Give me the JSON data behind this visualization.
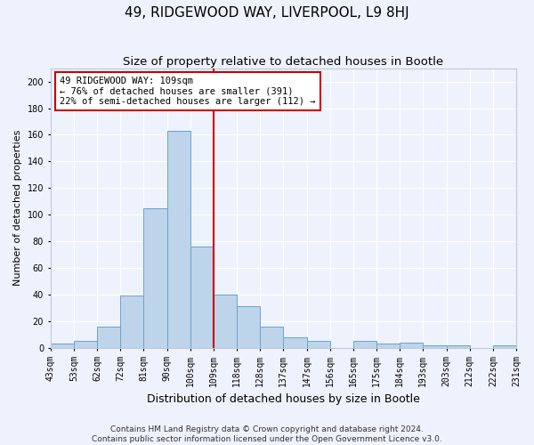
{
  "title": "49, RIDGEWOOD WAY, LIVERPOOL, L9 8HJ",
  "subtitle": "Size of property relative to detached houses in Bootle",
  "xlabel": "Distribution of detached houses by size in Bootle",
  "ylabel": "Number of detached properties",
  "categories": [
    "43sqm",
    "53sqm",
    "62sqm",
    "72sqm",
    "81sqm",
    "90sqm",
    "100sqm",
    "109sqm",
    "118sqm",
    "128sqm",
    "137sqm",
    "147sqm",
    "156sqm",
    "165sqm",
    "175sqm",
    "184sqm",
    "193sqm",
    "203sqm",
    "212sqm",
    "222sqm",
    "231sqm"
  ],
  "values": [
    3,
    5,
    16,
    39,
    105,
    163,
    76,
    40,
    31,
    16,
    8,
    5,
    0,
    5,
    3,
    4,
    2,
    2,
    0,
    2
  ],
  "bar_color": "#bdd4ea",
  "bar_edge_color": "#6ba3d0",
  "vline_pos": 7,
  "vline_color": "#cc0000",
  "annotation_text": "49 RIDGEWOOD WAY: 109sqm\n← 76% of detached houses are smaller (391)\n22% of semi-detached houses are larger (112) →",
  "annotation_box_facecolor": "#ffffff",
  "annotation_box_edgecolor": "#cc0000",
  "ylim": [
    0,
    210
  ],
  "yticks": [
    0,
    20,
    40,
    60,
    80,
    100,
    120,
    140,
    160,
    180,
    200
  ],
  "footer_line1": "Contains HM Land Registry data © Crown copyright and database right 2024.",
  "footer_line2": "Contains public sector information licensed under the Open Government Licence v3.0.",
  "bg_color": "#eef2fc",
  "title_fontsize": 11,
  "subtitle_fontsize": 9.5,
  "xlabel_fontsize": 9,
  "ylabel_fontsize": 8,
  "tick_fontsize": 7,
  "annotation_fontsize": 7.5,
  "footer_fontsize": 6.5
}
